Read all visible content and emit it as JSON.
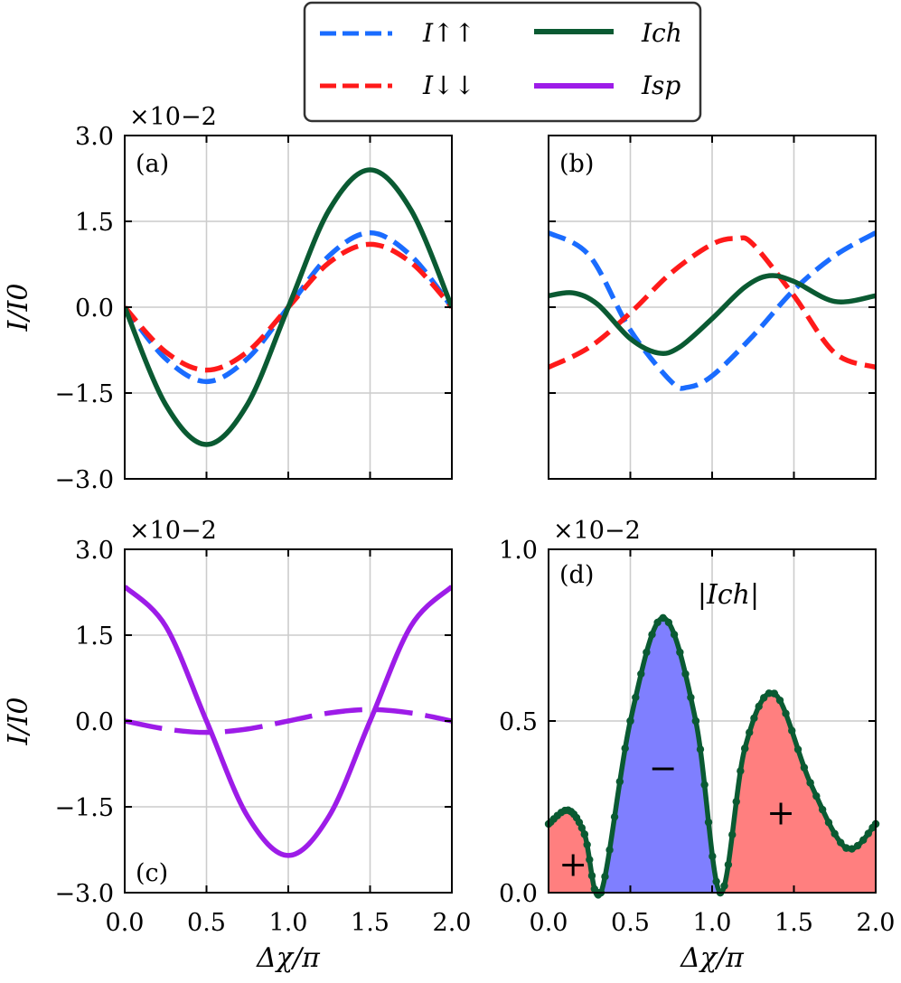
{
  "legend": {
    "entries": [
      {
        "name": "I↑↑",
        "color": "#1a6cff",
        "style": "dashed"
      },
      {
        "name": "I↓↓",
        "color": "#ff1a1a",
        "style": "dashed"
      },
      {
        "name": "Ich",
        "color": "#0a5a32",
        "style": "solid"
      },
      {
        "name": "Isp",
        "color": "#9d1ce8",
        "style": "solid"
      }
    ]
  },
  "colors": {
    "up": "#1a6cff",
    "down": "#ff1a1a",
    "ch": "#0a5a32",
    "sp": "#9d1ce8",
    "neg_fill": "#7f7fff",
    "pos_fill": "#ff7f7f"
  },
  "chart_data": [
    {
      "panel": "(a)",
      "type": "line",
      "multiplier": "×10−2",
      "xlabel": "",
      "ylabel": "I/I0",
      "xlim": [
        0,
        2
      ],
      "ylim": [
        -3,
        3
      ],
      "yticks": [
        "3.0",
        "1.5",
        "0.0",
        "−1.5",
        "−3.0"
      ],
      "series": [
        {
          "name": "I↑↑",
          "x": [
            0,
            0.25,
            0.5,
            0.75,
            1.0,
            1.25,
            1.5,
            1.75,
            2.0
          ],
          "values": [
            0.0,
            -0.9,
            -1.3,
            -0.9,
            0.0,
            0.9,
            1.3,
            0.9,
            0.0
          ]
        },
        {
          "name": "I↓↓",
          "x": [
            0,
            0.25,
            0.5,
            0.75,
            1.0,
            1.25,
            1.5,
            1.75,
            2.0
          ],
          "values": [
            0.0,
            -0.78,
            -1.1,
            -0.78,
            0.0,
            0.78,
            1.1,
            0.78,
            0.0
          ]
        },
        {
          "name": "Ich",
          "x": [
            0,
            0.25,
            0.5,
            0.75,
            1.0,
            1.25,
            1.5,
            1.75,
            2.0
          ],
          "values": [
            0.0,
            -1.7,
            -2.4,
            -1.7,
            0.0,
            1.7,
            2.4,
            1.7,
            0.0
          ]
        }
      ]
    },
    {
      "panel": "(b)",
      "type": "line",
      "xlim": [
        0,
        2
      ],
      "ylim": [
        -3,
        3
      ],
      "series": [
        {
          "name": "I↑↑",
          "x": [
            0,
            0.25,
            0.5,
            0.75,
            0.85,
            1.0,
            1.25,
            1.5,
            1.75,
            2.0
          ],
          "values": [
            1.3,
            0.9,
            -0.4,
            -1.3,
            -1.4,
            -1.2,
            -0.5,
            0.3,
            0.9,
            1.3
          ]
        },
        {
          "name": "I↓↓",
          "x": [
            0,
            0.25,
            0.5,
            0.75,
            1.0,
            1.15,
            1.25,
            1.5,
            1.75,
            2.0
          ],
          "values": [
            -1.05,
            -0.7,
            -0.1,
            0.6,
            1.1,
            1.2,
            1.1,
            0.2,
            -0.8,
            -1.05
          ]
        },
        {
          "name": "Ich",
          "x": [
            0,
            0.15,
            0.3,
            0.5,
            0.67,
            0.8,
            1.0,
            1.2,
            1.35,
            1.5,
            1.75,
            2.0
          ],
          "values": [
            0.2,
            0.25,
            0.05,
            -0.55,
            -0.8,
            -0.7,
            -0.2,
            0.35,
            0.55,
            0.45,
            0.1,
            0.2
          ]
        }
      ]
    },
    {
      "panel": "(c)",
      "type": "line",
      "multiplier": "×10−2",
      "xlabel": "Δχ/π",
      "ylabel": "I/I0",
      "xlim": [
        0,
        2
      ],
      "ylim": [
        -3,
        3
      ],
      "yticks": [
        "3.0",
        "1.5",
        "0.0",
        "−1.5",
        "−3.0"
      ],
      "xticks": [
        "0.0",
        "0.5",
        "1.0",
        "1.5",
        "2.0"
      ],
      "series": [
        {
          "name": "Isp",
          "style": "solid",
          "x": [
            0,
            0.25,
            0.5,
            0.75,
            1.0,
            1.25,
            1.5,
            1.75,
            2.0
          ],
          "values": [
            2.35,
            1.66,
            0.0,
            -1.66,
            -2.35,
            -1.66,
            0.0,
            1.66,
            2.35
          ]
        },
        {
          "name": "Isp",
          "style": "dashed",
          "x": [
            0,
            0.25,
            0.5,
            0.75,
            1.0,
            1.25,
            1.5,
            1.75,
            2.0
          ],
          "values": [
            0.0,
            -0.14,
            -0.2,
            -0.14,
            0.0,
            0.14,
            0.2,
            0.14,
            0.0
          ]
        }
      ]
    },
    {
      "panel": "(d)",
      "type": "area",
      "title": "|Ich|",
      "multiplier": "×10−2",
      "xlabel": "Δχ/π",
      "xlim": [
        0,
        2
      ],
      "ylim": [
        0,
        1
      ],
      "yticks": [
        "1.0",
        "0.5",
        "0.0"
      ],
      "xticks": [
        "0.0",
        "0.5",
        "1.0",
        "1.5",
        "2.0"
      ],
      "series": [
        {
          "name": "|Ich|",
          "x": [
            0,
            0.12,
            0.22,
            0.32,
            0.5,
            0.7,
            0.9,
            1.05,
            1.2,
            1.38,
            1.6,
            1.82,
            2.0
          ],
          "values": [
            0.2,
            0.24,
            0.17,
            0.0,
            0.5,
            0.8,
            0.5,
            0.0,
            0.42,
            0.58,
            0.32,
            0.13,
            0.2
          ]
        }
      ],
      "annotations": [
        {
          "text": "+",
          "x": 0.15,
          "y": 0.08
        },
        {
          "text": "−",
          "x": 0.7,
          "y": 0.36
        },
        {
          "text": "+",
          "x": 1.42,
          "y": 0.23
        }
      ]
    }
  ]
}
